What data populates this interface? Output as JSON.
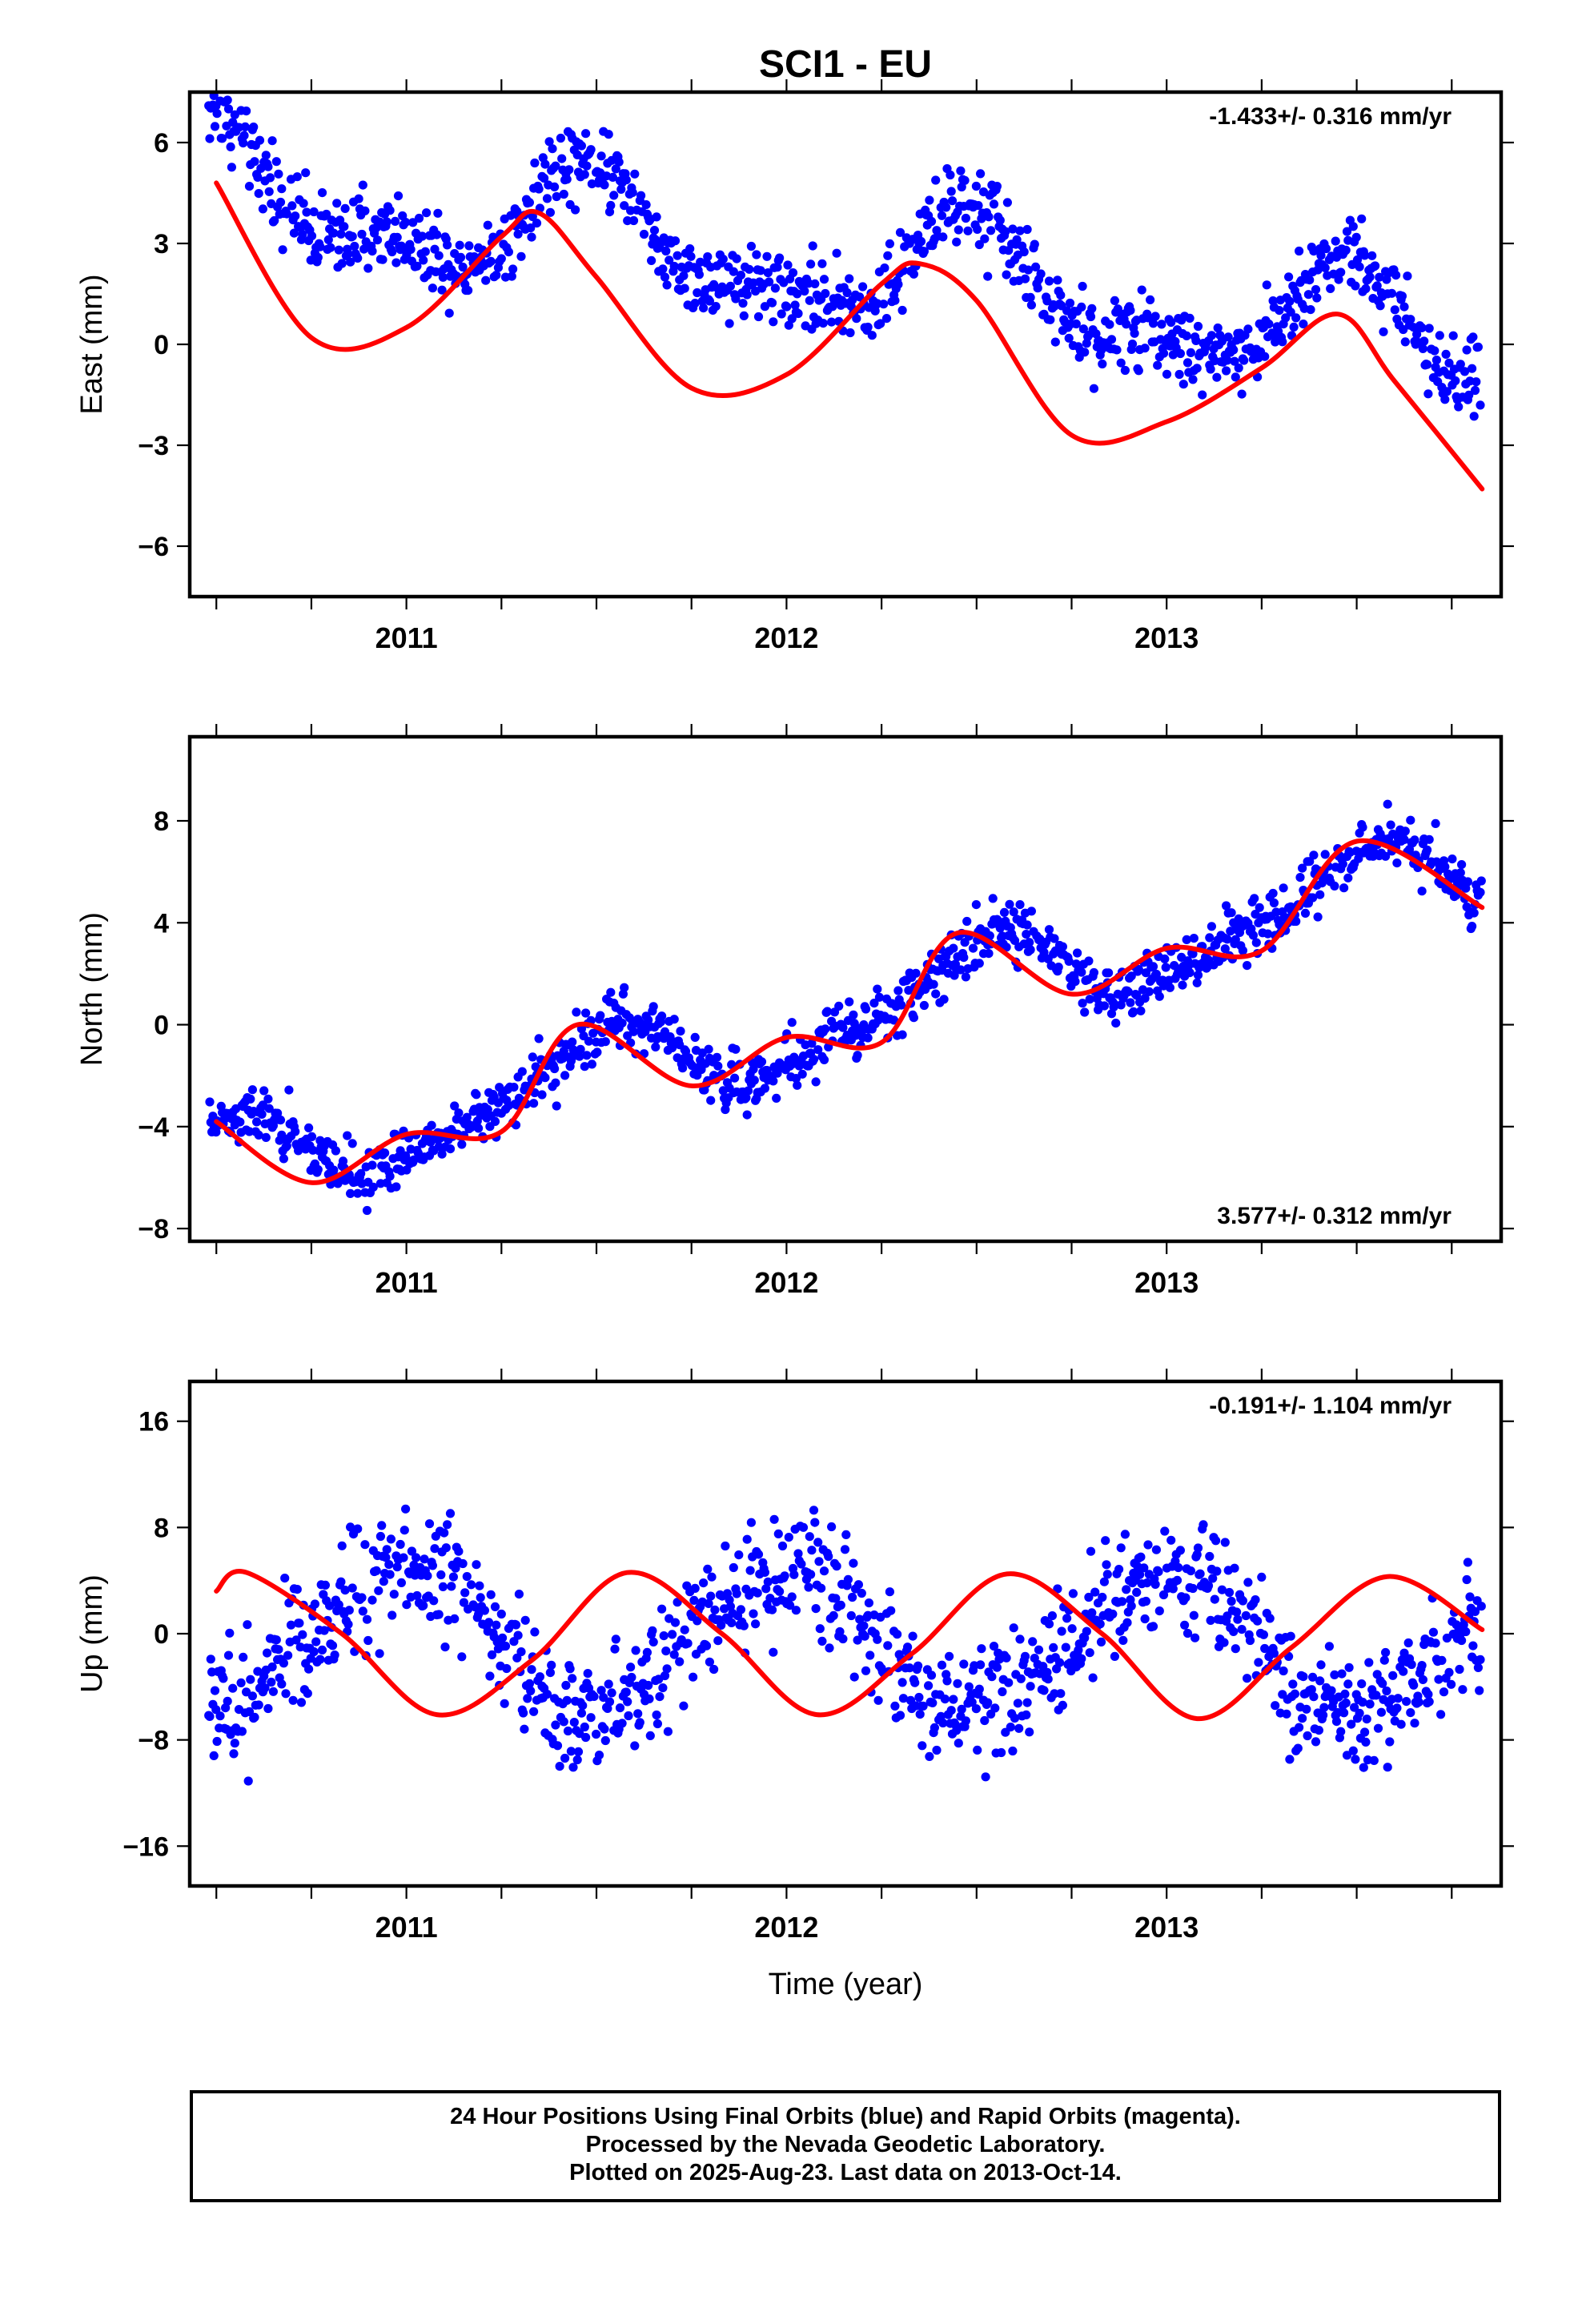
{
  "chart_data": {
    "title": "SCI1 - EU",
    "x_label": "Time (year)",
    "type": "scatter",
    "x_range": [
      2010.43,
      2013.88
    ],
    "x_ticks": [
      2011,
      2012,
      2013
    ],
    "panels": [
      {
        "id": "east",
        "ylabel": "East (mm)",
        "ylim": [
          -7.5,
          7.5
        ],
        "yticks": [
          {
            "value": 6,
            "label": "6"
          },
          {
            "value": 3,
            "label": "3"
          },
          {
            "value": 0,
            "label": "0"
          },
          {
            "value": -3,
            "label": "−3"
          },
          {
            "value": -6,
            "label": "−6"
          }
        ],
        "rate_label": "-1.433+/- 0.316 mm/yr",
        "rate_position": "top-right",
        "model": {
          "trend_mm_per_yr": -1.433,
          "offset_mm": 2.3,
          "mid_year": 2012.15,
          "annual_amplitude_mm": 1.5,
          "annual_phase_deg": -85,
          "semiannual_amplitude_mm": 0.8,
          "semiannual_phase_deg": 110,
          "noise_mm": 1.0
        },
        "fit_curve": {
          "x": [
            2010.5,
            2010.75,
            2011.0,
            2011.25,
            2011.35,
            2011.5,
            2011.75,
            2012.0,
            2012.25,
            2012.35,
            2012.5,
            2012.75,
            2013.0,
            2013.25,
            2013.45,
            2013.6,
            2013.83
          ],
          "y": [
            4.8,
            0.2,
            0.5,
            3.2,
            3.9,
            2.0,
            -1.3,
            -0.9,
            1.8,
            2.4,
            1.3,
            -2.7,
            -2.3,
            -0.7,
            0.9,
            -1.1,
            -4.3
          ]
        }
      },
      {
        "id": "north",
        "ylabel": "North (mm)",
        "ylim": [
          -8.5,
          11.3
        ],
        "yticks": [
          {
            "value": 8,
            "label": "8"
          },
          {
            "value": 4,
            "label": "4"
          },
          {
            "value": 0,
            "label": "0"
          },
          {
            "value": -4,
            "label": "−4"
          },
          {
            "value": -8,
            "label": "−8"
          }
        ],
        "rate_label": "3.577+/- 0.312 mm/yr",
        "rate_position": "bottom-right",
        "model": {
          "trend_mm_per_yr": 3.577,
          "offset_mm": 0.25,
          "mid_year": 2012.15,
          "annual_amplitude_mm": 1.6,
          "annual_phase_deg": -90,
          "semiannual_amplitude_mm": 0.5,
          "semiannual_phase_deg": 30,
          "noise_mm": 0.95
        },
        "fit_curve": {
          "x": [
            2010.5,
            2010.75,
            2011.0,
            2011.25,
            2011.45,
            2011.75,
            2012.0,
            2012.25,
            2012.45,
            2012.75,
            2013.0,
            2013.25,
            2013.5,
            2013.83
          ],
          "y": [
            -3.8,
            -6.2,
            -4.3,
            -4.2,
            0.0,
            -2.4,
            -0.5,
            -0.7,
            3.6,
            1.2,
            3.0,
            2.9,
            7.2,
            4.6
          ]
        }
      },
      {
        "id": "up",
        "ylabel": "Up (mm)",
        "ylim": [
          -19,
          19
        ],
        "yticks": [
          {
            "value": 16,
            "label": "16"
          },
          {
            "value": 8,
            "label": "8"
          },
          {
            "value": 0,
            "label": "0"
          },
          {
            "value": -8,
            "label": "−8"
          },
          {
            "value": -16,
            "label": "−16"
          }
        ],
        "rate_label": "-0.191+/- 1.104 mm/yr",
        "rate_position": "top-right",
        "model": {
          "trend_mm_per_yr": -0.191,
          "offset_mm": -0.6,
          "mid_year": 2012.15,
          "annual_amplitude_mm": 5.3,
          "annual_phase_deg": 90,
          "semiannual_amplitude_mm": 0.4,
          "semiannual_phase_deg": 0,
          "noise_mm": 3.8
        },
        "fit_curve": {
          "x": [
            2010.5,
            2010.58,
            2010.83,
            2011.08,
            2011.33,
            2011.58,
            2011.83,
            2012.08,
            2012.33,
            2012.58,
            2012.83,
            2013.08,
            2013.33,
            2013.58,
            2013.83
          ],
          "y": [
            3.2,
            4.6,
            0.0,
            -6.1,
            -2.0,
            4.6,
            0.0,
            -6.1,
            -1.5,
            4.5,
            0.0,
            -6.4,
            -1.0,
            4.3,
            0.3
          ]
        }
      }
    ]
  },
  "caption": {
    "line1": "24 Hour Positions Using Final Orbits (blue) and Rapid Orbits (magenta).",
    "line2": "Processed by the Nevada Geodetic Laboratory.",
    "line3": "Plotted on 2025-Aug-23. Last data on 2013-Oct-14."
  },
  "colors": {
    "points": "#0000ff",
    "fit": "#ff0000",
    "frame": "#000000"
  }
}
